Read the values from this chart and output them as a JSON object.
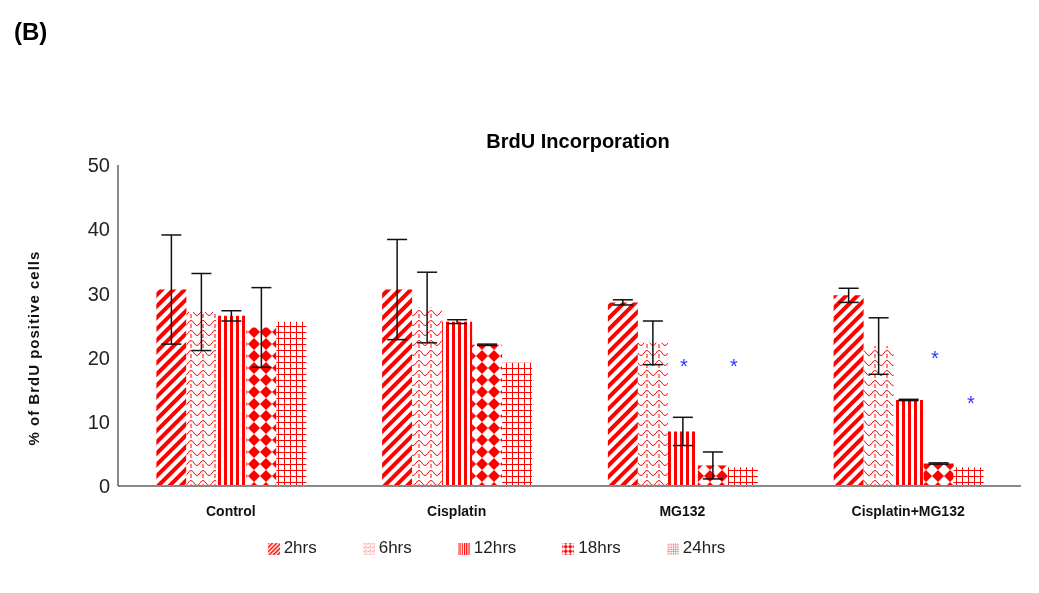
{
  "chart_data": {
    "type": "bar",
    "title": "BrdU Incorporation",
    "ylabel": "% of BrdU positive cells",
    "categories": [
      "Control",
      "Cisplatin",
      "MG132",
      "Cisplatin+MG132"
    ],
    "series": [
      {
        "name": "2hrs",
        "color": "#ff0000",
        "values": [
          30.6,
          30.6,
          28.6,
          29.7
        ],
        "errors": [
          8.5,
          7.8,
          0.4,
          1.1
        ]
      },
      {
        "name": "6hrs",
        "color": "#ff0000",
        "values": [
          27.1,
          27.8,
          22.3,
          21.8
        ],
        "errors": [
          6.0,
          5.5,
          3.4,
          4.4
        ]
      },
      {
        "name": "12hrs",
        "color": "#ff0000",
        "values": [
          26.5,
          25.6,
          8.5,
          13.4
        ],
        "errors": [
          0.8,
          0.3,
          2.2,
          0.1
        ]
      },
      {
        "name": "18hrs",
        "color": "#ff0000",
        "values": [
          24.7,
          22.0,
          3.2,
          3.5
        ],
        "errors": [
          6.2,
          0.1,
          2.1,
          0.1
        ]
      },
      {
        "name": "24hrs",
        "color": "#ff0000",
        "values": [
          25.6,
          19.2,
          2.9,
          2.9
        ]
      }
    ],
    "ylim": [
      0,
      50
    ],
    "yticks": [
      0,
      10,
      20,
      30,
      40,
      50
    ],
    "grid": false,
    "legend": "bottom",
    "annotations": [
      "(B)",
      "*",
      "*",
      "*",
      "*"
    ]
  }
}
